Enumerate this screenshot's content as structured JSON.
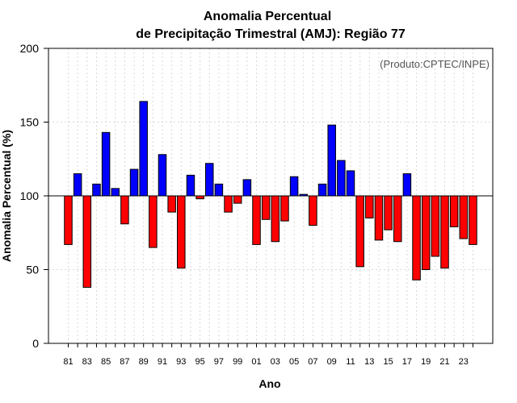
{
  "chart_data": {
    "type": "bar",
    "title_line1": "Anomalia Percentual",
    "title_line2": "de Precipitação Trimestral (AMJ): Região 77",
    "xlabel": "Ano",
    "ylabel": "Anomalia Percentual (%)",
    "credit": "(Produto:CPTEC/INPE)",
    "ylim": [
      0,
      200
    ],
    "yticks": [
      0,
      50,
      100,
      150,
      200
    ],
    "baseline": 100,
    "colors": {
      "above": "#0000ff",
      "below": "#ff0000"
    },
    "categories": [
      "81",
      "82",
      "83",
      "84",
      "85",
      "86",
      "87",
      "88",
      "89",
      "90",
      "91",
      "92",
      "93",
      "94",
      "95",
      "96",
      "97",
      "98",
      "99",
      "00",
      "01",
      "02",
      "03",
      "04",
      "05",
      "06",
      "07",
      "08",
      "09",
      "10",
      "11",
      "12",
      "13",
      "14",
      "15",
      "16",
      "17",
      "18",
      "19",
      "20",
      "21",
      "22",
      "23",
      "24"
    ],
    "tick_labels": [
      "81",
      "83",
      "85",
      "87",
      "89",
      "91",
      "93",
      "95",
      "97",
      "99",
      "01",
      "03",
      "05",
      "07",
      "09",
      "11",
      "13",
      "15",
      "17",
      "19",
      "21",
      "23"
    ],
    "values": [
      67,
      115,
      38,
      108,
      143,
      105,
      81,
      118,
      164,
      65,
      128,
      89,
      51,
      114,
      98,
      122,
      108,
      89,
      95,
      111,
      67,
      84,
      69,
      83,
      113,
      101,
      80,
      108,
      148,
      124,
      117,
      52,
      85,
      70,
      77,
      69,
      115,
      43,
      50,
      59,
      51,
      79,
      71,
      67
    ]
  }
}
